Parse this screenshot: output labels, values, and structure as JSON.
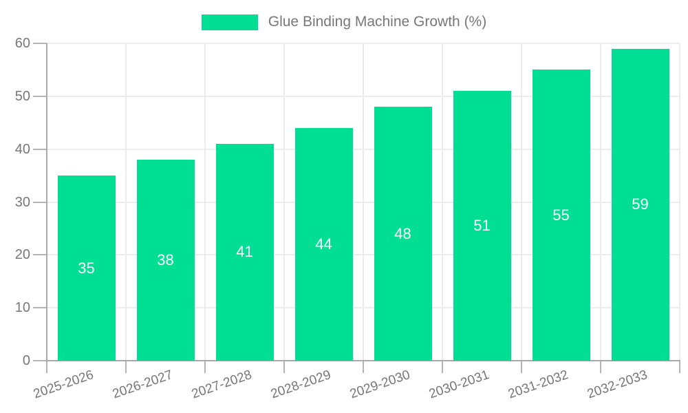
{
  "chart_data": {
    "type": "bar",
    "title": "Glue Binding Machine Growth (%)",
    "categories": [
      "2025-2026",
      "2026-2027",
      "2027-2028",
      "2028-2029",
      "2029-2030",
      "2030-2031",
      "2031-2032",
      "2032-2033"
    ],
    "values": [
      35,
      38,
      41,
      44,
      48,
      51,
      55,
      59
    ],
    "xlabel": "",
    "ylabel": "",
    "ylim": [
      0,
      60
    ],
    "yticks": [
      0,
      10,
      20,
      30,
      40,
      50,
      60
    ],
    "grid": true,
    "legend_position": "top-center",
    "bar_color": "#00DE94",
    "bar_label_color": "#ffffff",
    "axis_text_color": "#777777",
    "grid_color": "#ececec",
    "axis_line_color": "#a8a8a8"
  }
}
